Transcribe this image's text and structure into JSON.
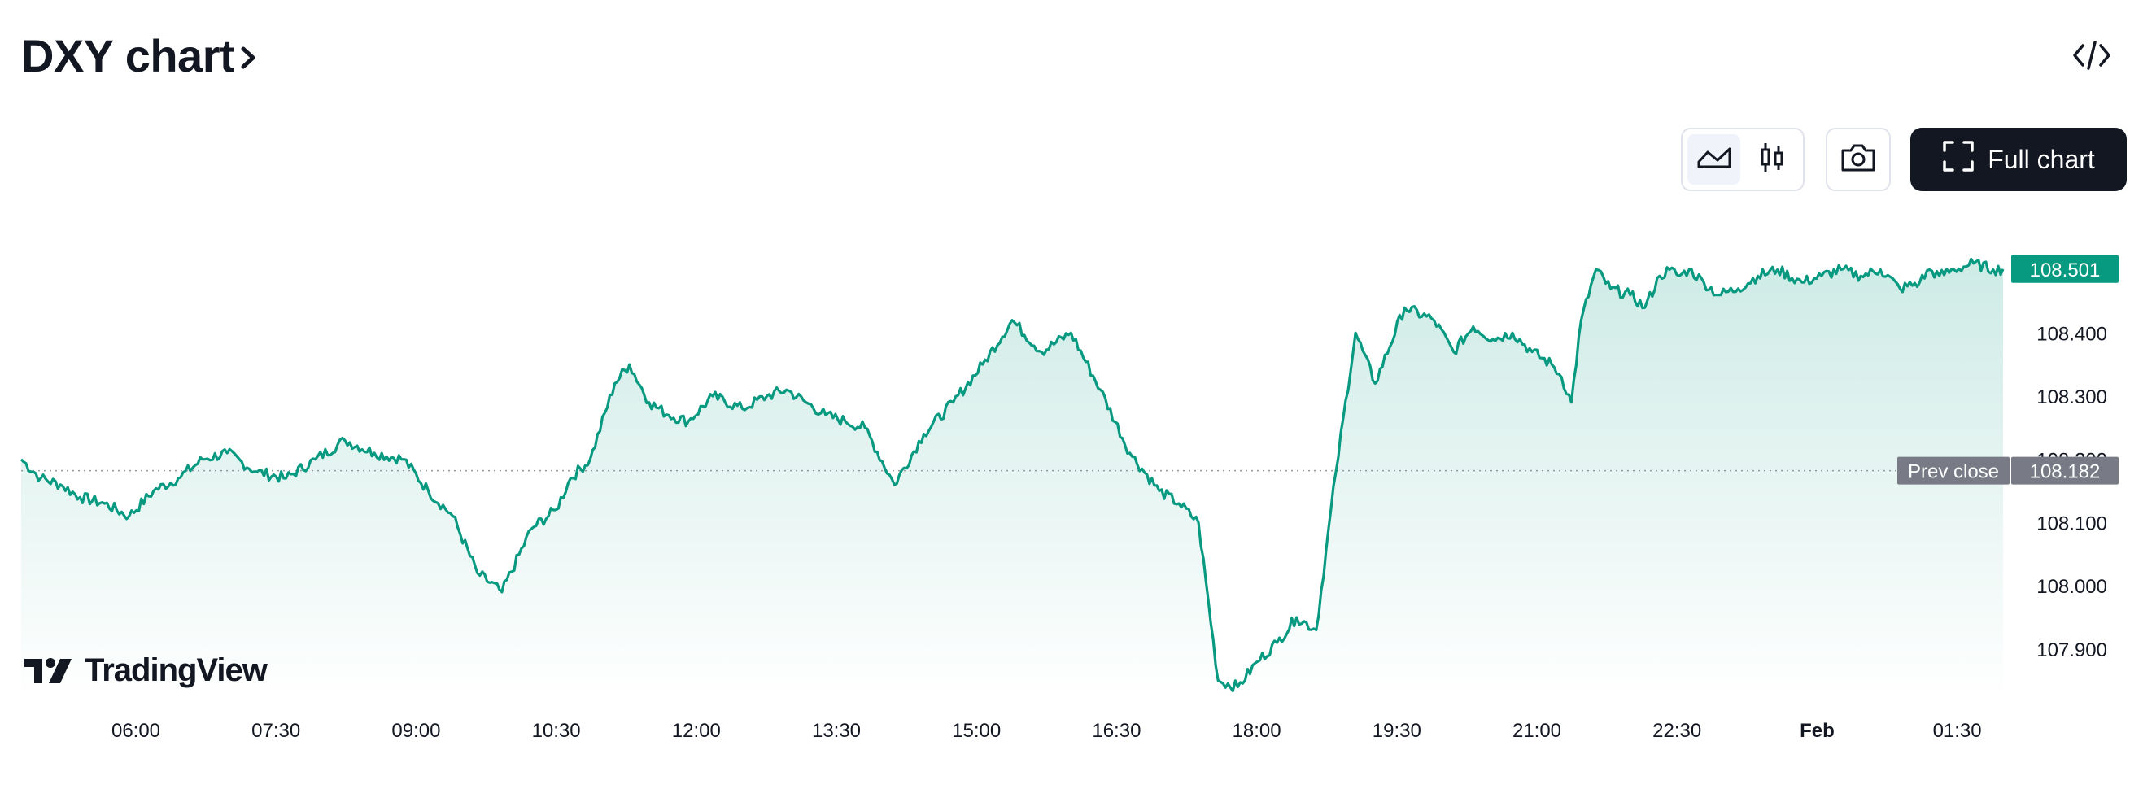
{
  "header": {
    "title": "DXY chart",
    "embed_icon": "code-icon"
  },
  "toolbar": {
    "line_chart_icon": "area-chart-icon",
    "candles_icon": "candlestick-icon",
    "camera_icon": "camera-icon",
    "full_chart_label": "Full chart",
    "full_chart_icon": "fullscreen-icon"
  },
  "brand": {
    "logo_text": "TradingView"
  },
  "colors": {
    "line": "#089981",
    "fill_top": "rgba(8,153,129,0.20)",
    "fill_bottom": "rgba(8,153,129,0.0)",
    "last_price_bg": "#089981",
    "prev_close_bg": "#787b86"
  },
  "chart_data": {
    "type": "area",
    "symbol": "DXY",
    "x_labels": [
      "06:00",
      "07:30",
      "09:00",
      "10:30",
      "12:00",
      "13:30",
      "15:00",
      "16:30",
      "18:00",
      "19:30",
      "21:00",
      "22:30",
      "Feb",
      "01:30"
    ],
    "y_ticks": [
      "108.400",
      "108.300",
      "108.200",
      "108.100",
      "108.000",
      "107.900"
    ],
    "ylim": [
      107.82,
      108.52
    ],
    "last_price": "108.501",
    "prev_close_label": "Prev close",
    "prev_close": "108.182",
    "series": [
      {
        "x_hours": [
          5.4,
          5.6,
          5.8,
          6.0,
          6.25,
          6.5,
          6.75,
          7.0,
          7.25,
          7.5,
          7.8,
          8.1,
          8.4,
          8.7,
          9.0,
          9.3,
          9.55,
          9.8,
          10.05,
          10.3,
          10.6,
          10.85,
          11.0,
          11.2,
          11.45,
          11.6,
          11.8,
          12.0,
          12.2,
          12.45,
          12.75,
          13.0,
          13.2,
          13.4,
          13.6,
          13.8,
          14.0,
          14.3,
          14.6,
          14.9,
          15.2,
          15.5,
          15.8,
          16.1,
          16.4,
          16.7,
          17.0,
          17.2,
          17.4,
          17.6,
          17.8,
          18.0,
          18.2,
          18.4,
          18.6,
          18.8,
          19.0,
          19.2,
          19.5,
          19.8,
          20.0,
          20.2,
          20.4,
          20.6,
          20.8,
          21.0,
          21.1,
          21.2,
          21.3,
          21.45,
          21.6,
          21.8,
          21.95,
          22.1,
          22.2,
          22.3,
          22.4,
          22.55,
          22.7,
          22.9,
          23.1,
          23.3,
          23.55,
          23.75,
          23.95,
          24.15,
          24.35,
          24.55,
          24.75,
          24.85,
          24.95,
          25.1,
          25.3,
          25.5,
          25.6
        ],
        "values": [
          108.2,
          108.17,
          108.16,
          108.14,
          108.13,
          108.11,
          108.15,
          108.17,
          108.2,
          108.21,
          108.18,
          108.17,
          108.2,
          108.23,
          108.21,
          108.2,
          108.15,
          108.11,
          108.02,
          107.99,
          108.09,
          108.12,
          108.17,
          108.2,
          108.32,
          108.35,
          108.29,
          108.27,
          108.26,
          108.3,
          108.28,
          108.3,
          108.31,
          108.29,
          108.27,
          108.26,
          108.25,
          108.16,
          108.24,
          108.29,
          108.35,
          108.42,
          108.37,
          108.4,
          108.31,
          108.21,
          108.15,
          108.13,
          108.1,
          107.85,
          107.84,
          107.88,
          107.91,
          107.95,
          107.93,
          108.18,
          108.4,
          108.32,
          108.44,
          108.42,
          108.37,
          108.41,
          108.39,
          108.4,
          108.37,
          108.35,
          108.33,
          108.29,
          108.42,
          108.5,
          108.47,
          108.46,
          108.44,
          108.49,
          108.5,
          108.49,
          108.5,
          108.48,
          108.46,
          108.47,
          108.49,
          108.5,
          108.48,
          108.49,
          108.5,
          108.49,
          108.5,
          108.47,
          108.48,
          108.5,
          108.49,
          108.5,
          108.51,
          108.5,
          108.501
        ]
      }
    ]
  }
}
